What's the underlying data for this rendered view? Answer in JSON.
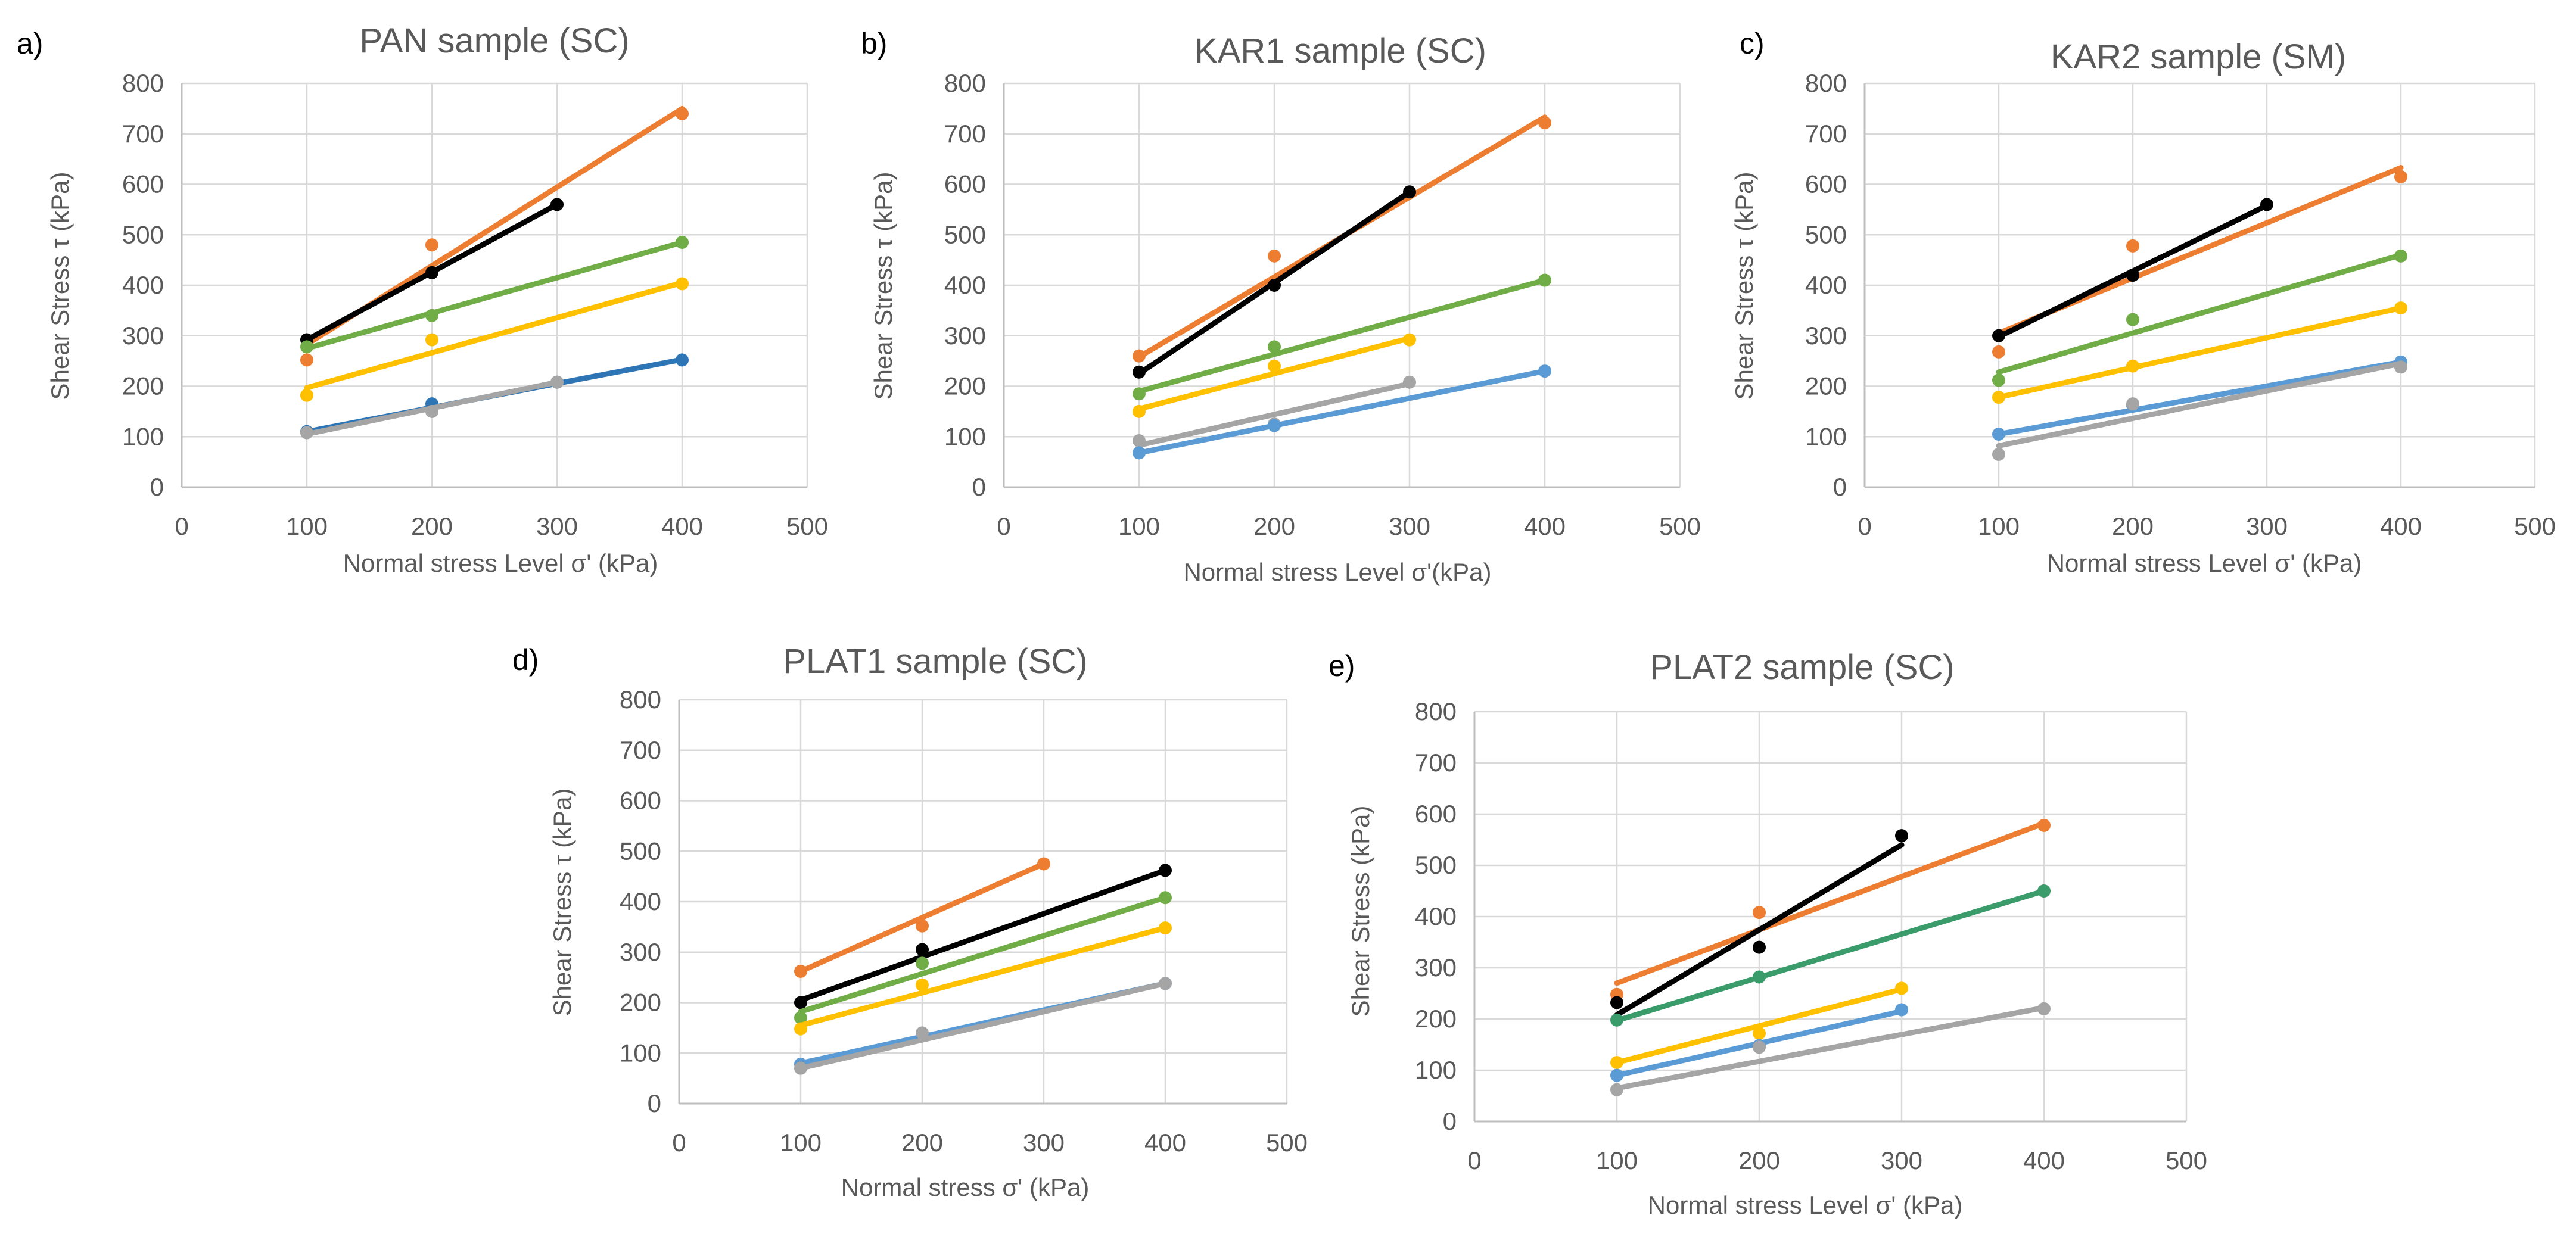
{
  "figure_panels": [
    "a)",
    "b)",
    "c)",
    "d)",
    "e)"
  ],
  "chart_data": [
    {
      "panel": "a)",
      "type": "scatter",
      "title": "PAN sample (SC)",
      "xlabel": "Normal stress Level σ' (kPa)",
      "ylabel": "Shear Stress τ (kPa)",
      "xlim": [
        0,
        500
      ],
      "ylim": [
        0,
        800
      ],
      "xticks": [
        "0",
        "100",
        "200",
        "300",
        "400",
        "500"
      ],
      "yticks": [
        "0",
        "100",
        "200",
        "300",
        "400",
        "500",
        "600",
        "700",
        "800"
      ],
      "grid": true,
      "series": [
        {
          "name": "orange",
          "color": "#ED7D31",
          "points": [
            [
              100,
              252
            ],
            [
              200,
              480
            ],
            [
              400,
              740
            ]
          ],
          "fit": [
            [
              100,
              283
            ],
            [
              400,
              750
            ]
          ]
        },
        {
          "name": "black",
          "color": "#000000",
          "points": [
            [
              100,
              292
            ],
            [
              200,
              425
            ],
            [
              300,
              560
            ]
          ],
          "fit": [
            [
              100,
              292
            ],
            [
              300,
              560
            ]
          ]
        },
        {
          "name": "green",
          "color": "#70AD47",
          "points": [
            [
              100,
              278
            ],
            [
              200,
              340
            ],
            [
              400,
              485
            ]
          ],
          "fit": [
            [
              100,
              275
            ],
            [
              400,
              485
            ]
          ]
        },
        {
          "name": "yellow",
          "color": "#FFC000",
          "points": [
            [
              100,
              182
            ],
            [
              200,
              292
            ],
            [
              400,
              403
            ]
          ],
          "fit": [
            [
              100,
              197
            ],
            [
              400,
              405
            ]
          ]
        },
        {
          "name": "blue",
          "color": "#2E75B6",
          "points": [
            [
              100,
              110
            ],
            [
              200,
              165
            ],
            [
              300,
              208
            ],
            [
              400,
              252
            ]
          ],
          "fit": [
            [
              100,
              110
            ],
            [
              400,
              253
            ]
          ]
        },
        {
          "name": "gray",
          "color": "#A5A5A5",
          "points": [
            [
              100,
              108
            ],
            [
              200,
              150
            ],
            [
              300,
              208
            ]
          ],
          "fit": [
            [
              100,
              105
            ],
            [
              300,
              208
            ]
          ]
        }
      ]
    },
    {
      "panel": "b)",
      "type": "scatter",
      "title": "KAR1 sample (SC)",
      "xlabel": "Normal stress Level σ'(kPa)",
      "ylabel": "Shear Stress τ (kPa)",
      "xlim": [
        0,
        500
      ],
      "ylim": [
        0,
        800
      ],
      "xticks": [
        "0",
        "100",
        "200",
        "300",
        "400",
        "500"
      ],
      "yticks": [
        "0",
        "100",
        "200",
        "300",
        "400",
        "500",
        "600",
        "700",
        "800"
      ],
      "grid": true,
      "series": [
        {
          "name": "orange",
          "color": "#ED7D31",
          "points": [
            [
              100,
              260
            ],
            [
              200,
              458
            ],
            [
              400,
              722
            ]
          ],
          "fit": [
            [
              100,
              258
            ],
            [
              400,
              733
            ]
          ]
        },
        {
          "name": "black",
          "color": "#000000",
          "points": [
            [
              100,
              228
            ],
            [
              200,
              400
            ],
            [
              300,
              585
            ]
          ],
          "fit": [
            [
              100,
              225
            ],
            [
              300,
              585
            ]
          ]
        },
        {
          "name": "green",
          "color": "#70AD47",
          "points": [
            [
              100,
              185
            ],
            [
              200,
              278
            ],
            [
              400,
              410
            ]
          ],
          "fit": [
            [
              100,
              190
            ],
            [
              400,
              410
            ]
          ]
        },
        {
          "name": "yellow",
          "color": "#FFC000",
          "points": [
            [
              100,
              150
            ],
            [
              200,
              240
            ],
            [
              300,
              292
            ]
          ],
          "fit": [
            [
              100,
              155
            ],
            [
              300,
              295
            ]
          ]
        },
        {
          "name": "gray",
          "color": "#A5A5A5",
          "points": [
            [
              100,
              92
            ],
            [
              200,
              125
            ],
            [
              300,
              208
            ]
          ],
          "fit": [
            [
              100,
              83
            ],
            [
              300,
              205
            ]
          ]
        },
        {
          "name": "blue",
          "color": "#5B9BD5",
          "points": [
            [
              100,
              68
            ],
            [
              200,
              122
            ],
            [
              400,
              230
            ]
          ],
          "fit": [
            [
              100,
              68
            ],
            [
              400,
              230
            ]
          ]
        }
      ]
    },
    {
      "panel": "c)",
      "type": "scatter",
      "title": "KAR2 sample (SM)",
      "xlabel": "Normal stress Level σ' (kPa)",
      "ylabel": "Shear Stress τ (kPa)",
      "xlim": [
        0,
        500
      ],
      "ylim": [
        0,
        800
      ],
      "xticks": [
        "0",
        "100",
        "200",
        "300",
        "400",
        "500"
      ],
      "yticks": [
        "0",
        "100",
        "200",
        "300",
        "400",
        "500",
        "600",
        "700",
        "800"
      ],
      "grid": true,
      "series": [
        {
          "name": "orange",
          "color": "#ED7D31",
          "points": [
            [
              100,
              268
            ],
            [
              200,
              478
            ],
            [
              400,
              615
            ]
          ],
          "fit": [
            [
              100,
              305
            ],
            [
              400,
              633
            ]
          ]
        },
        {
          "name": "black",
          "color": "#000000",
          "points": [
            [
              100,
              300
            ],
            [
              200,
              420
            ],
            [
              300,
              560
            ]
          ],
          "fit": [
            [
              100,
              298
            ],
            [
              300,
              558
            ]
          ]
        },
        {
          "name": "green",
          "color": "#70AD47",
          "points": [
            [
              100,
              212
            ],
            [
              200,
              332
            ],
            [
              400,
              458
            ]
          ],
          "fit": [
            [
              100,
              228
            ],
            [
              400,
              460
            ]
          ]
        },
        {
          "name": "yellow",
          "color": "#FFC000",
          "points": [
            [
              100,
              178
            ],
            [
              200,
              240
            ],
            [
              400,
              355
            ]
          ],
          "fit": [
            [
              100,
              178
            ],
            [
              400,
              355
            ]
          ]
        },
        {
          "name": "blue",
          "color": "#5B9BD5",
          "points": [
            [
              100,
              105
            ],
            [
              200,
              162
            ],
            [
              400,
              248
            ]
          ],
          "fit": [
            [
              100,
              105
            ],
            [
              400,
              248
            ]
          ]
        },
        {
          "name": "gray",
          "color": "#A5A5A5",
          "points": [
            [
              100,
              65
            ],
            [
              200,
              165
            ],
            [
              400,
              238
            ]
          ],
          "fit": [
            [
              100,
              82
            ],
            [
              400,
              245
            ]
          ]
        }
      ]
    },
    {
      "panel": "d)",
      "type": "scatter",
      "title": "PLAT1 sample (SC)",
      "xlabel": "Normal stress σ' (kPa)",
      "ylabel": "Shear Stress τ (kPa)",
      "xlim": [
        0,
        500
      ],
      "ylim": [
        0,
        800
      ],
      "xticks": [
        "0",
        "100",
        "200",
        "300",
        "400",
        "500"
      ],
      "yticks": [
        "0",
        "100",
        "200",
        "300",
        "400",
        "500",
        "600",
        "700",
        "800"
      ],
      "grid": true,
      "series": [
        {
          "name": "orange",
          "color": "#ED7D31",
          "points": [
            [
              100,
              262
            ],
            [
              200,
              352
            ],
            [
              300,
              475
            ]
          ],
          "fit": [
            [
              100,
              262
            ],
            [
              300,
              475
            ]
          ]
        },
        {
          "name": "black",
          "color": "#000000",
          "points": [
            [
              100,
              200
            ],
            [
              200,
              305
            ],
            [
              400,
              462
            ]
          ],
          "fit": [
            [
              100,
              205
            ],
            [
              400,
              462
            ]
          ]
        },
        {
          "name": "green",
          "color": "#70AD47",
          "points": [
            [
              100,
              170
            ],
            [
              200,
              278
            ],
            [
              400,
              408
            ]
          ],
          "fit": [
            [
              100,
              182
            ],
            [
              400,
              408
            ]
          ]
        },
        {
          "name": "yellow",
          "color": "#FFC000",
          "points": [
            [
              100,
              148
            ],
            [
              200,
              235
            ],
            [
              400,
              348
            ]
          ],
          "fit": [
            [
              100,
              155
            ],
            [
              400,
              348
            ]
          ]
        },
        {
          "name": "blue",
          "color": "#5B9BD5",
          "points": [
            [
              100,
              78
            ],
            [
              200,
              138
            ],
            [
              400,
              238
            ]
          ],
          "fit": [
            [
              100,
              80
            ],
            [
              400,
              238
            ]
          ]
        },
        {
          "name": "gray",
          "color": "#A5A5A5",
          "points": [
            [
              100,
              70
            ],
            [
              200,
              140
            ],
            [
              400,
              238
            ]
          ],
          "fit": [
            [
              100,
              70
            ],
            [
              400,
              238
            ]
          ]
        }
      ]
    },
    {
      "panel": "e)",
      "type": "scatter",
      "title": "PLAT2 sample (SC)",
      "xlabel": "Normal stress Level σ' (kPa)",
      "ylabel": "Shear Stress (kPa)",
      "xlim": [
        0,
        500
      ],
      "ylim": [
        0,
        800
      ],
      "xticks": [
        "0",
        "100",
        "200",
        "300",
        "400",
        "500"
      ],
      "yticks": [
        "0",
        "100",
        "200",
        "300",
        "400",
        "500",
        "600",
        "700",
        "800"
      ],
      "grid": true,
      "series": [
        {
          "name": "orange",
          "color": "#ED7D31",
          "points": [
            [
              100,
              248
            ],
            [
              200,
              408
            ],
            [
              400,
              578
            ]
          ],
          "fit": [
            [
              100,
              270
            ],
            [
              400,
              582
            ]
          ]
        },
        {
          "name": "black",
          "color": "#000000",
          "points": [
            [
              100,
              232
            ],
            [
              200,
              340
            ],
            [
              300,
              558
            ]
          ],
          "fit": [
            [
              100,
              208
            ],
            [
              300,
              540
            ]
          ]
        },
        {
          "name": "green",
          "color": "#3A9B6B",
          "points": [
            [
              100,
              198
            ],
            [
              200,
              282
            ],
            [
              400,
              450
            ]
          ],
          "fit": [
            [
              100,
              197
            ],
            [
              400,
              450
            ]
          ]
        },
        {
          "name": "yellow",
          "color": "#FFC000",
          "points": [
            [
              100,
              115
            ],
            [
              200,
              172
            ],
            [
              300,
              260
            ]
          ],
          "fit": [
            [
              100,
              115
            ],
            [
              300,
              258
            ]
          ]
        },
        {
          "name": "blue",
          "color": "#5B9BD5",
          "points": [
            [
              100,
              90
            ],
            [
              200,
              148
            ],
            [
              300,
              218
            ]
          ],
          "fit": [
            [
              100,
              90
            ],
            [
              300,
              215
            ]
          ]
        },
        {
          "name": "gray",
          "color": "#A5A5A5",
          "points": [
            [
              100,
              62
            ],
            [
              200,
              145
            ],
            [
              400,
              220
            ]
          ],
          "fit": [
            [
              100,
              65
            ],
            [
              400,
              222
            ]
          ]
        }
      ]
    }
  ]
}
